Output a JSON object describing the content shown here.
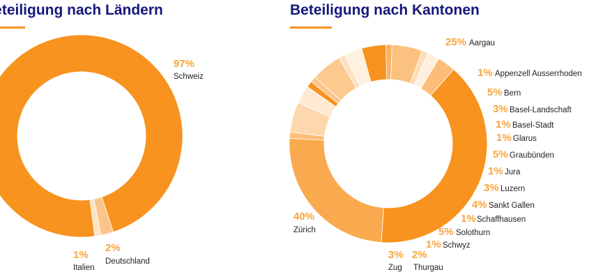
{
  "colors": {
    "title": "#15187a",
    "accent": "#f7931e",
    "label_value": "#f7a43c",
    "label_text": "#222222"
  },
  "chart_data": [
    {
      "type": "pie",
      "donut": true,
      "title": "Beteiligung nach Ländern",
      "slices": [
        {
          "label": "Schweiz",
          "value": 97,
          "display": "97%",
          "color": "#f7931e"
        },
        {
          "label": "Deutschland",
          "value": 2,
          "display": "2%",
          "color": "#fbc58a"
        },
        {
          "label": "Italien",
          "value": 1,
          "display": "1%",
          "color": "#fde3c4"
        }
      ]
    },
    {
      "type": "pie",
      "donut": true,
      "title": "Beteiligung nach Kantonen",
      "slices": [
        {
          "label": "Aargau",
          "value": 25,
          "display": "25%",
          "color": "#f9a94e"
        },
        {
          "label": "Appenzell Ausserrhoden",
          "value": 1,
          "display": "1%",
          "color": "#fbbd78"
        },
        {
          "label": "Bern",
          "value": 5,
          "display": "5%",
          "color": "#fdd8ad"
        },
        {
          "label": "Basel-Landschaft",
          "value": 3,
          "display": "3%",
          "color": "#fee9d2"
        },
        {
          "label": "Basel-Stadt",
          "value": 1,
          "display": "1%",
          "color": "#f7931e"
        },
        {
          "label": "Glarus",
          "value": 1,
          "display": "1%",
          "color": "#fbc58a"
        },
        {
          "label": "Graubünden",
          "value": 5,
          "display": "5%",
          "color": "#fcc98f"
        },
        {
          "label": "Jura",
          "value": 1,
          "display": "1%",
          "color": "#fde0bf"
        },
        {
          "label": "Luzern",
          "value": 3,
          "display": "3%",
          "color": "#fff1e0"
        },
        {
          "label": "Sankt Gallen",
          "value": 4,
          "display": "4%",
          "color": "#f7931e"
        },
        {
          "label": "Schaffhausen",
          "value": 1,
          "display": "1%",
          "color": "#fbb163"
        },
        {
          "label": "Solothurn",
          "value": 5,
          "display": "5%",
          "color": "#fbc17f"
        },
        {
          "label": "Schwyz",
          "value": 1,
          "display": "1%",
          "color": "#fddcb6"
        },
        {
          "label": "Thurgau",
          "value": 2,
          "display": "2%",
          "color": "#fff0de"
        },
        {
          "label": "Zug",
          "value": 3,
          "display": "3%",
          "color": "#fbbd78"
        },
        {
          "label": "Zürich",
          "value": 40,
          "display": "40%",
          "color": "#f7931e"
        }
      ]
    }
  ]
}
